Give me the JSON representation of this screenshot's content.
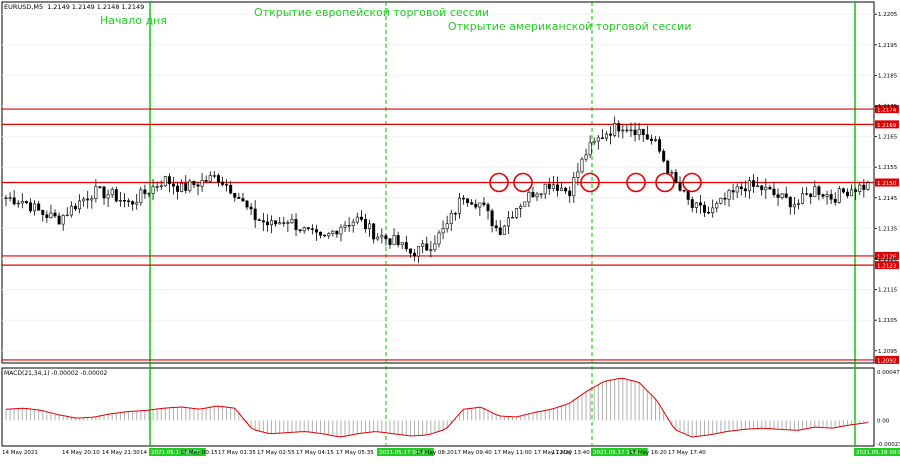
{
  "window": {
    "symbol_label": "EURUSD,M5",
    "ohlc": "1.2149 1.2149 1.2148 1.2149"
  },
  "annotations": {
    "day_start": "Начало дня",
    "eu_open": "Открытие европейской торговой сессии",
    "us_open": "Открытие американской торговой сессии"
  },
  "indicator": {
    "label": "MACD(21,34,1) -0.00002 -0.00002"
  },
  "colors": {
    "background": "#ffffff",
    "candle": "#000000",
    "level_line": "#e00000",
    "session_line": "#00c000",
    "circle": "#e00000",
    "macd_line": "#e00000",
    "macd_hist": "#b0b0b0",
    "axis_text": "#000000",
    "annotation_text": "#22cc22",
    "highlight_label_bg": "#22cc22"
  },
  "chart_data": [
    {
      "type": "candlestick",
      "symbol": "EURUSD",
      "timeframe": "M5",
      "ylim": [
        1.2091,
        1.2209
      ],
      "y_ticks": [
        "1.2205",
        "1.2195",
        "1.2185",
        "1.2175",
        "1.2165",
        "1.2155",
        "1.2145",
        "1.2135",
        "1.2125",
        "1.2115",
        "1.2105",
        "1.2095"
      ],
      "levels": [
        {
          "label": "1.2174",
          "value": 1.2174
        },
        {
          "label": "1.2169",
          "value": 1.2169
        },
        {
          "label": "1.2150",
          "value": 1.215
        },
        {
          "label": "1.2126",
          "value": 1.2126
        },
        {
          "label": "1.2123",
          "value": 1.2123
        },
        {
          "label": "1.2092",
          "value": 1.2092
        }
      ],
      "x_ticks": [
        {
          "label": "14 May 2021",
          "highlight": false
        },
        {
          "label": "14 May 20:10",
          "highlight": false
        },
        {
          "label": "14 May 21:30",
          "highlight": false
        },
        {
          "label": "14 May 22:50",
          "highlight": false
        },
        {
          "label": "2021.05.17 00:00",
          "highlight": true
        },
        {
          "label": "17 May 00:15",
          "highlight": false
        },
        {
          "label": "17 May 01:35",
          "highlight": false
        },
        {
          "label": "17 May 02:55",
          "highlight": false
        },
        {
          "label": "17 May 04:15",
          "highlight": false
        },
        {
          "label": "17 May 05:35",
          "highlight": false
        },
        {
          "label": "2021.05.17 09:00",
          "highlight": true
        },
        {
          "label": "17 May 08:20",
          "highlight": false
        },
        {
          "label": "17 May 09:40",
          "highlight": false
        },
        {
          "label": "17 May 11:00",
          "highlight": false
        },
        {
          "label": "17 May 12:20",
          "highlight": false
        },
        {
          "label": "17 May 13:40",
          "highlight": false
        },
        {
          "label": "2021.05.17 15:00",
          "highlight": true
        },
        {
          "label": "17 May 16:20",
          "highlight": false
        },
        {
          "label": "17 May 17:40",
          "highlight": false
        },
        {
          "label": "2021.05.18 00:00",
          "highlight": true
        }
      ],
      "close_path": [
        1.2145,
        1.2144,
        1.214,
        1.2138,
        1.2143,
        1.2147,
        1.2146,
        1.2143,
        1.2147,
        1.2151,
        1.2148,
        1.215,
        1.2152,
        1.2147,
        1.2139,
        1.2136,
        1.2138,
        1.2134,
        1.2131,
        1.2136,
        1.2138,
        1.2133,
        1.2131,
        1.2127,
        1.2129,
        1.2135,
        1.2146,
        1.2143,
        1.2134,
        1.2142,
        1.2147,
        1.215,
        1.2147,
        1.216,
        1.2166,
        1.2169,
        1.2167,
        1.2162,
        1.215,
        1.2142,
        1.214,
        1.2145,
        1.2149,
        1.2148,
        1.2145,
        1.2143,
        1.2148,
        1.2145,
        1.2148,
        1.2149
      ],
      "circled_touches": 6
    },
    {
      "type": "bar",
      "name": "MACD(21,34,1)",
      "value_label": "-0.00002",
      "ylim": [
        -0.00023,
        0.00047
      ],
      "y_ticks": [
        "0.00047",
        "0.00",
        "-0.00023"
      ],
      "values": [
        0.0001,
        0.00011,
        9e-05,
        5e-05,
        2e-05,
        3e-05,
        6e-05,
        8e-05,
        9e-05,
        0.00011,
        0.00012,
        0.0001,
        0.00013,
        0.00011,
        -8e-05,
        -0.00012,
        -0.00011,
        -0.0001,
        -0.00012,
        -0.00015,
        -0.00012,
        -0.0001,
        -0.00012,
        -0.00014,
        -0.00013,
        -8e-05,
        0.0001,
        0.00012,
        4e-05,
        3e-05,
        7e-05,
        0.0001,
        0.00015,
        0.00026,
        0.00035,
        0.00038,
        0.00034,
        0.00018,
        -8e-05,
        -0.00015,
        -0.00013,
        -0.0001,
        -8e-05,
        -7e-05,
        -8e-05,
        -9e-05,
        -6e-05,
        -7e-05,
        -4e-05,
        -2e-05
      ]
    }
  ]
}
